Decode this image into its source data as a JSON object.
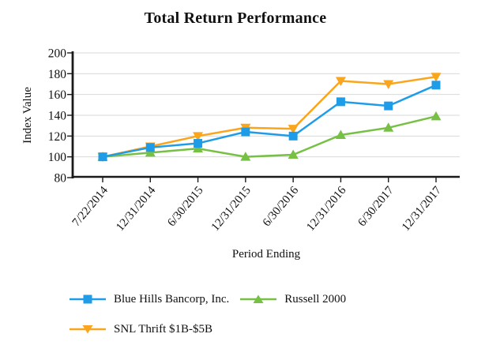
{
  "title": "Total Return Performance",
  "colors": {
    "background": "#ffffff",
    "axis": "#1a1a1a",
    "grid": "#d9d9d9",
    "text": "#111111",
    "series_blue": "#1f9ce8",
    "series_green": "#76c043",
    "series_orange": "#faa51e"
  },
  "chart_data": {
    "type": "line",
    "title": "Total Return Performance",
    "xlabel": "Period Ending",
    "ylabel": "Index Value",
    "categories": [
      "7/22/2014",
      "12/31/2014",
      "6/30/2015",
      "12/31/2015",
      "6/30/2016",
      "12/31/2016",
      "6/30/2017",
      "12/31/2017"
    ],
    "yticks": [
      80,
      100,
      120,
      140,
      160,
      180,
      200
    ],
    "ylim": [
      80,
      200
    ],
    "grid": true,
    "legend_position": "bottom-left",
    "series": [
      {
        "name": "Blue Hills Bancorp, Inc.",
        "marker": "square",
        "color": "#1f9ce8",
        "values": [
          100,
          109,
          113,
          124,
          120,
          153,
          149,
          169
        ]
      },
      {
        "name": "Russell 2000",
        "marker": "triangle-up",
        "color": "#76c043",
        "values": [
          100,
          104,
          108,
          100,
          102,
          121,
          128,
          139
        ]
      },
      {
        "name": "SNL Thrift $1B-$5B",
        "marker": "triangle-down",
        "color": "#faa51e",
        "values": [
          100,
          110,
          120,
          128,
          127,
          173,
          170,
          177
        ]
      }
    ]
  }
}
